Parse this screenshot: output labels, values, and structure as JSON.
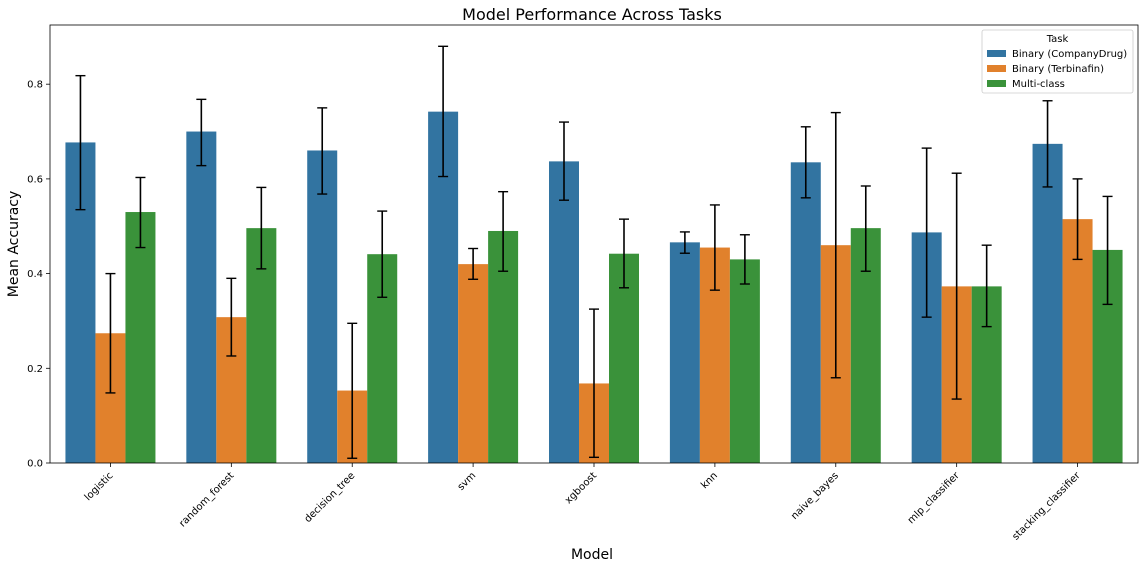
{
  "chart_data": {
    "type": "bar",
    "title": "Model Performance Across Tasks",
    "xlabel": "Model",
    "ylabel": "Mean Accuracy",
    "ylim": [
      0,
      0.925
    ],
    "yticks": [
      "0.0",
      "0.2",
      "0.4",
      "0.6",
      "0.8"
    ],
    "categories": [
      "logistic",
      "random_forest",
      "decision_tree",
      "svm",
      "xgboost",
      "knn",
      "naive_bayes",
      "mlp_classifier",
      "stacking_classifier"
    ],
    "legend": {
      "title": "Task",
      "position": "top-right"
    },
    "grid": false,
    "series": [
      {
        "name": "Binary (CompanyDrug)",
        "color": "#3274a1",
        "values": [
          0.677,
          0.7,
          0.66,
          0.742,
          0.637,
          0.466,
          0.635,
          0.487,
          0.674
        ],
        "err_low": [
          0.535,
          0.628,
          0.568,
          0.605,
          0.555,
          0.443,
          0.56,
          0.308,
          0.583
        ],
        "err_high": [
          0.818,
          0.768,
          0.75,
          0.88,
          0.72,
          0.488,
          0.71,
          0.665,
          0.765
        ]
      },
      {
        "name": "Binary (Terbinafin)",
        "color": "#e1812c",
        "values": [
          0.274,
          0.308,
          0.153,
          0.42,
          0.168,
          0.455,
          0.46,
          0.373,
          0.515
        ],
        "err_low": [
          0.148,
          0.226,
          0.01,
          0.388,
          0.012,
          0.365,
          0.18,
          0.135,
          0.43
        ],
        "err_high": [
          0.4,
          0.39,
          0.295,
          0.453,
          0.325,
          0.545,
          0.74,
          0.612,
          0.6
        ]
      },
      {
        "name": "Multi-class",
        "color": "#3a923a",
        "values": [
          0.53,
          0.496,
          0.441,
          0.49,
          0.442,
          0.43,
          0.496,
          0.373,
          0.45
        ],
        "err_low": [
          0.455,
          0.41,
          0.35,
          0.405,
          0.37,
          0.378,
          0.405,
          0.288,
          0.335
        ],
        "err_high": [
          0.603,
          0.582,
          0.532,
          0.573,
          0.515,
          0.482,
          0.585,
          0.46,
          0.563
        ]
      }
    ]
  }
}
